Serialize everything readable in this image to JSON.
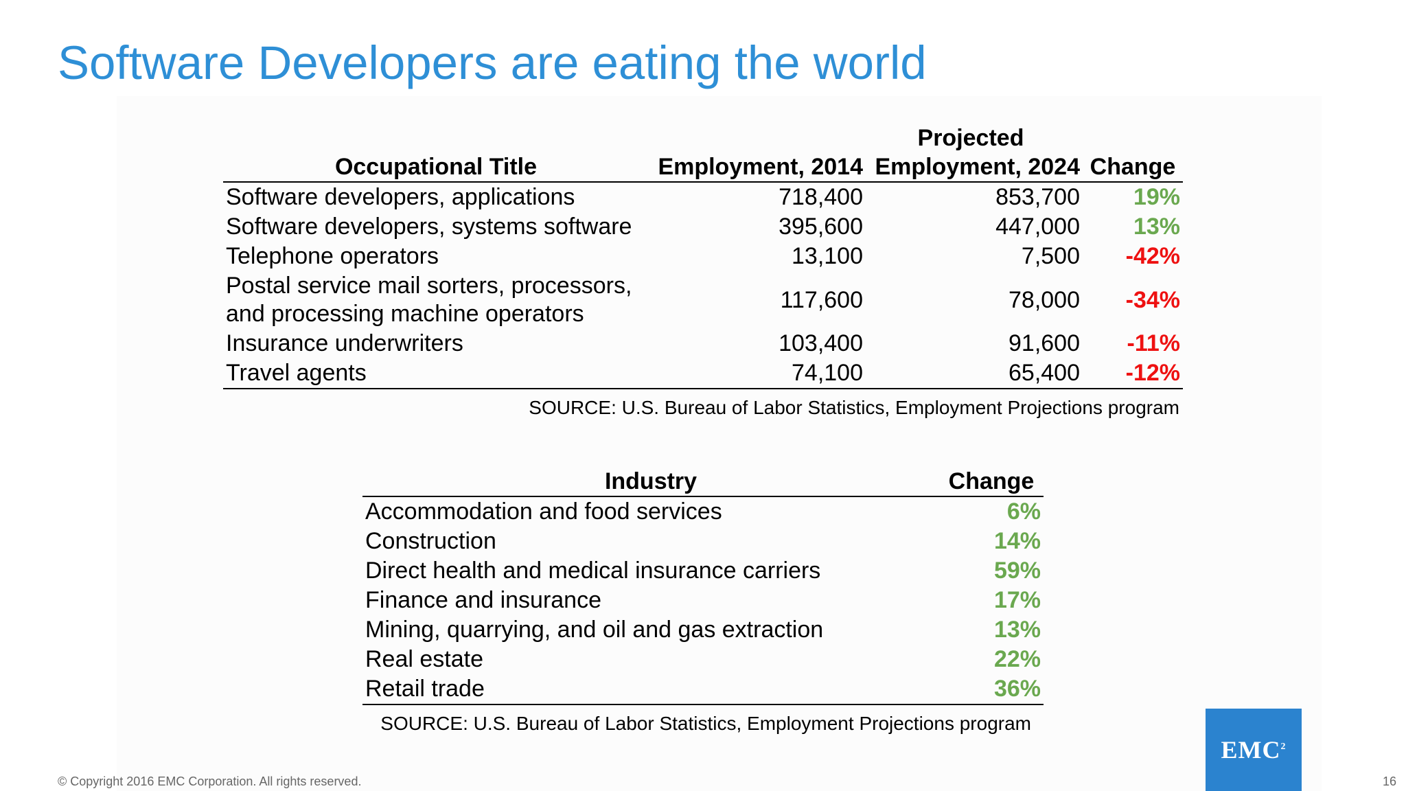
{
  "slide": {
    "title": "Software Developers are eating the world",
    "copyright": "© Copyright 2016 EMC Corporation. All rights reserved.",
    "page_number": "16",
    "logo": {
      "text": "EMC",
      "superscript": "2",
      "color": "#2b83cf"
    },
    "colors": {
      "title": "#2e8fd6",
      "positive": "#6aa84f",
      "negative": "#ee1111"
    }
  },
  "occupations": {
    "headers": {
      "title": "Occupational Title",
      "emp2014": "Employment, 2014",
      "projected": "Projected",
      "emp2024": "Employment, 2024",
      "change": "Change"
    },
    "rows": [
      {
        "title": "Software developers, applications",
        "emp2014": "718,400",
        "emp2024": "853,700",
        "change": "19%"
      },
      {
        "title": "Software developers, systems software",
        "emp2014": "395,600",
        "emp2024": "447,000",
        "change": "13%"
      },
      {
        "title": "Telephone operators",
        "emp2014": "13,100",
        "emp2024": "7,500",
        "change": "-42%"
      },
      {
        "title_line1": "Postal service mail sorters, processors,",
        "title_line2": "and processing machine operators",
        "emp2014": "117,600",
        "emp2024": "78,000",
        "change": "-34%"
      },
      {
        "title": "Insurance underwriters",
        "emp2014": "103,400",
        "emp2024": "91,600",
        "change": "-11%"
      },
      {
        "title": "Travel agents",
        "emp2014": "74,100",
        "emp2024": "65,400",
        "change": "-12%"
      }
    ],
    "source": "SOURCE: U.S. Bureau of Labor Statistics, Employment Projections program"
  },
  "industries": {
    "headers": {
      "industry": "Industry",
      "change": "Change"
    },
    "rows": [
      {
        "industry": "Accommodation and food services",
        "change": "6%"
      },
      {
        "industry": "Construction",
        "change": "14%"
      },
      {
        "industry": "Direct health and medical insurance carriers",
        "change": "59%"
      },
      {
        "industry": "Finance and insurance",
        "change": "17%"
      },
      {
        "industry": "Mining, quarrying, and oil and gas extraction",
        "change": "13%"
      },
      {
        "industry": "Real estate",
        "change": "22%"
      },
      {
        "industry": "Retail trade",
        "change": "36%"
      }
    ],
    "source": "SOURCE: U.S. Bureau of Labor Statistics, Employment Projections program"
  }
}
